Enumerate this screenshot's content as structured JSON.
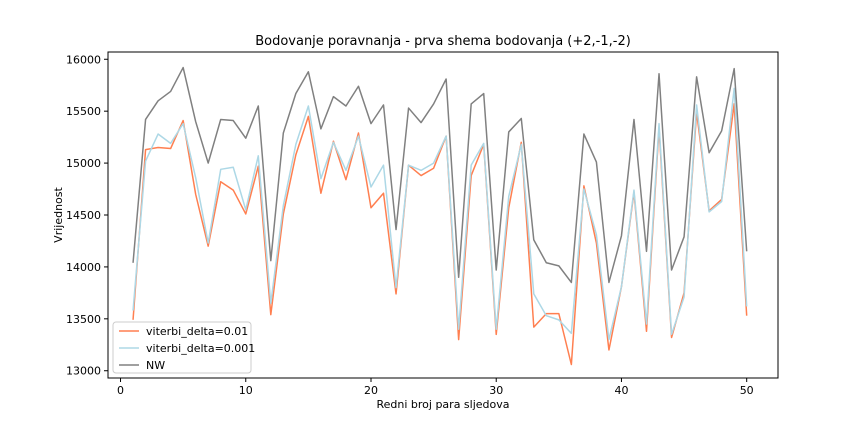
{
  "chart_data": {
    "type": "line",
    "title": "Bodovanje poravnanja - prva shema bodovanja (+2,-1,-2)",
    "xlabel": "Redni broj para sljedova",
    "ylabel": "Vrijednost",
    "xlim": [
      -1,
      52.5
    ],
    "ylim": [
      12930,
      16070
    ],
    "xticks": [
      0,
      10,
      20,
      30,
      40,
      50
    ],
    "yticks": [
      13000,
      13500,
      14000,
      14500,
      15000,
      15500,
      16000
    ],
    "grid": false,
    "legend_position": "lower-left",
    "x": [
      1,
      2,
      3,
      4,
      5,
      6,
      7,
      8,
      9,
      10,
      11,
      12,
      13,
      14,
      15,
      16,
      17,
      18,
      19,
      20,
      21,
      22,
      23,
      24,
      25,
      26,
      27,
      28,
      29,
      30,
      31,
      32,
      33,
      34,
      35,
      36,
      37,
      38,
      39,
      40,
      41,
      42,
      43,
      44,
      45,
      46,
      47,
      48,
      49,
      50
    ],
    "series": [
      {
        "name": "viterbi_delta=0.01",
        "color": "#ff7f50",
        "values": [
          13490,
          15130,
          15150,
          15140,
          15410,
          14700,
          14200,
          14820,
          14740,
          14510,
          14970,
          13540,
          14510,
          15080,
          15450,
          14710,
          15210,
          14840,
          15290,
          14570,
          14710,
          13740,
          14980,
          14880,
          14950,
          15260,
          13300,
          14880,
          15180,
          13350,
          14570,
          15200,
          13420,
          13550,
          13550,
          13060,
          14780,
          14230,
          13200,
          13810,
          14720,
          13380,
          15340,
          13320,
          13750,
          15490,
          14540,
          14650,
          15570,
          13530
        ]
      },
      {
        "name": "viterbi_delta=0.001",
        "color": "#add8e6",
        "values": [
          13580,
          15020,
          15280,
          15190,
          15380,
          14860,
          14230,
          14940,
          14960,
          14550,
          15070,
          13650,
          14590,
          15180,
          15550,
          14850,
          15200,
          14930,
          15260,
          14770,
          14980,
          13800,
          14980,
          14930,
          15000,
          15260,
          13400,
          14980,
          15190,
          13400,
          14680,
          15180,
          13740,
          13530,
          13490,
          13360,
          14750,
          14310,
          13300,
          13810,
          14740,
          13450,
          15380,
          13350,
          13710,
          15560,
          14530,
          14630,
          15720,
          13620
        ]
      },
      {
        "name": "NW",
        "color": "#808080",
        "values": [
          14040,
          15420,
          15600,
          15690,
          15920,
          15400,
          15000,
          15420,
          15410,
          15240,
          15550,
          14060,
          15290,
          15670,
          15880,
          15330,
          15640,
          15550,
          15740,
          15380,
          15560,
          14360,
          15530,
          15390,
          15570,
          15810,
          13900,
          15570,
          15670,
          13970,
          15300,
          15430,
          14260,
          14040,
          14010,
          13850,
          15280,
          15010,
          13850,
          14300,
          15420,
          14150,
          15860,
          13970,
          14290,
          15830,
          15100,
          15310,
          15910,
          14150
        ]
      }
    ]
  }
}
